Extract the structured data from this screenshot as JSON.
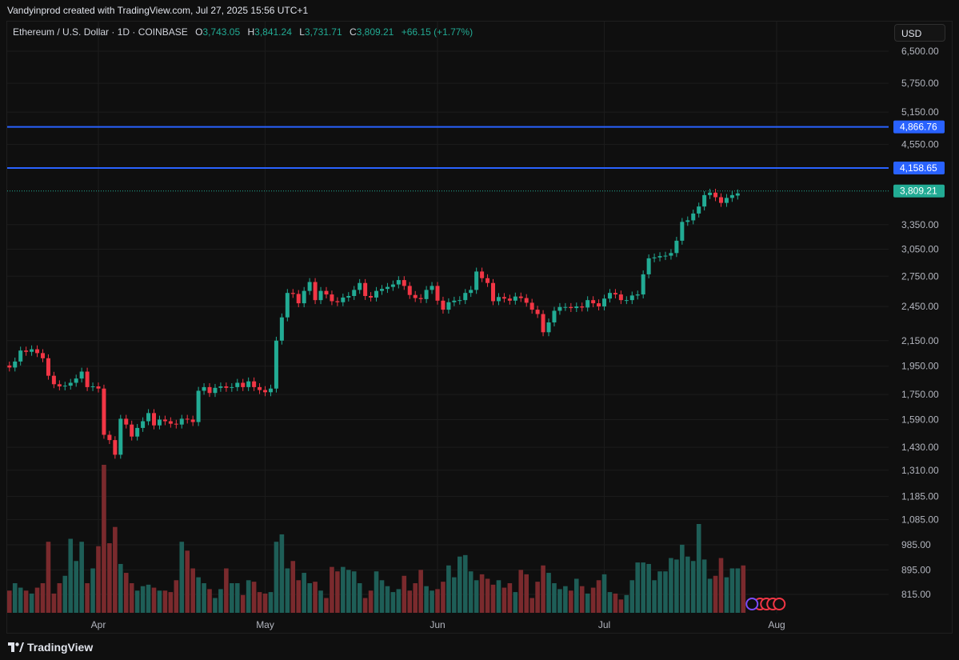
{
  "header": {
    "attribution": "Vandyinprod created with TradingView.com, Jul 27, 2025 15:56 UTC+1"
  },
  "legend": {
    "symbol": "Ethereum / U.S. Dollar · 1D · COINBASE",
    "o_label": "O",
    "o_value": "3,743.05",
    "h_label": "H",
    "h_value": "3,841.24",
    "l_label": "L",
    "l_value": "3,731.71",
    "c_label": "C",
    "c_value": "3,809.21",
    "change": "+66.15 (+1.77%)"
  },
  "currency_button": "USD",
  "footer": {
    "brand": "TradingView"
  },
  "colors": {
    "up": "#22ab94",
    "down": "#f23645",
    "level_line": "#2962ff",
    "background": "#0f0f0f"
  },
  "chart_data": {
    "type": "candlestick",
    "price_scale": "log",
    "y_ticks": [
      6500,
      5750,
      5150,
      4550,
      3350,
      3050,
      2750,
      2450,
      2150,
      1950,
      1750,
      1590,
      1430,
      1310,
      1185,
      1085,
      985,
      895,
      815
    ],
    "y_tick_labels": [
      "6,500.00",
      "5,750.00",
      "5,150.00",
      "4,550.00",
      "3,350.00",
      "3,050.00",
      "2,750.00",
      "2,450.00",
      "2,150.00",
      "1,950.00",
      "1,750.00",
      "1,590.00",
      "1,430.00",
      "1,310.00",
      "1,185.00",
      "1,085.00",
      "985.00",
      "895.00",
      "815.00"
    ],
    "x_labels": [
      "Apr",
      "May",
      "Jun",
      "Jul",
      "Aug"
    ],
    "x_label_dates": [
      "2025-04-01",
      "2025-05-01",
      "2025-06-01",
      "2025-07-01",
      "2025-08-01"
    ],
    "horizontal_levels": [
      {
        "price": 4866.76,
        "label": "4,866.76"
      },
      {
        "price": 4158.65,
        "label": "4,158.65"
      }
    ],
    "last_price": {
      "price": 3809.21,
      "label": "3,809.21"
    },
    "start_date": "2025-03-09",
    "ohlc_close": [
      1885,
      1870,
      1900,
      2040,
      1930,
      1920,
      1955,
      1940,
      1985,
      2070,
      2060,
      2080,
      2050,
      2010,
      1880,
      1820,
      1805,
      1810,
      1830,
      1860,
      1910,
      1800,
      1805,
      1790,
      1500,
      1470,
      1390,
      1595,
      1560,
      1490,
      1540,
      1580,
      1630,
      1555,
      1590,
      1580,
      1565,
      1560,
      1595,
      1590,
      1575,
      1775,
      1800,
      1760,
      1795,
      1805,
      1795,
      1800,
      1830,
      1800,
      1840,
      1800,
      1780,
      1765,
      1790,
      2150,
      2350,
      2580,
      2570,
      2480,
      2600,
      2690,
      2510,
      2600,
      2565,
      2500,
      2490,
      2535,
      2550,
      2610,
      2680,
      2550,
      2535,
      2600,
      2620,
      2640,
      2665,
      2710,
      2650,
      2560,
      2530,
      2520,
      2610,
      2650,
      2505,
      2420,
      2490,
      2505,
      2510,
      2580,
      2610,
      2800,
      2730,
      2680,
      2500,
      2540,
      2525,
      2505,
      2545,
      2530,
      2485,
      2420,
      2380,
      2220,
      2305,
      2410,
      2445,
      2445,
      2435,
      2450,
      2440,
      2510,
      2480,
      2450,
      2525,
      2580,
      2565,
      2510,
      2510,
      2555,
      2565,
      2770,
      2945,
      2955,
      2970,
      2975,
      3005,
      3150,
      3385,
      3405,
      3495,
      3590,
      3750,
      3785,
      3720,
      3640,
      3710,
      3750,
      3775,
      3809.21
    ],
    "ohlc_open": [
      1930,
      1885,
      1870,
      1900,
      2040,
      1930,
      1920,
      1955,
      1940,
      1985,
      2070,
      2060,
      2080,
      2050,
      2010,
      1880,
      1820,
      1805,
      1810,
      1830,
      1860,
      1910,
      1800,
      1805,
      1790,
      1500,
      1470,
      1390,
      1595,
      1560,
      1490,
      1540,
      1580,
      1630,
      1555,
      1590,
      1580,
      1565,
      1560,
      1595,
      1590,
      1575,
      1775,
      1800,
      1760,
      1795,
      1805,
      1795,
      1800,
      1830,
      1800,
      1840,
      1800,
      1780,
      1765,
      1790,
      2150,
      2350,
      2580,
      2570,
      2480,
      2600,
      2690,
      2510,
      2600,
      2565,
      2500,
      2490,
      2535,
      2550,
      2610,
      2680,
      2550,
      2535,
      2600,
      2620,
      2640,
      2665,
      2710,
      2650,
      2560,
      2530,
      2520,
      2610,
      2650,
      2505,
      2420,
      2490,
      2505,
      2510,
      2580,
      2610,
      2800,
      2730,
      2680,
      2500,
      2540,
      2525,
      2505,
      2545,
      2530,
      2485,
      2420,
      2380,
      2220,
      2305,
      2410,
      2445,
      2445,
      2435,
      2450,
      2440,
      2510,
      2480,
      2450,
      2525,
      2580,
      2565,
      2510,
      2510,
      2555,
      2565,
      2770,
      2945,
      2955,
      2970,
      2975,
      3005,
      3150,
      3385,
      3405,
      3495,
      3590,
      3750,
      3785,
      3720,
      3640,
      3710,
      3743.05
    ],
    "volume_relative": [
      0.15,
      0.15,
      0.3,
      0.18,
      0.14,
      0.12,
      0.1,
      0.15,
      0.2,
      0.17,
      0.15,
      0.13,
      0.17,
      0.2,
      0.48,
      0.13,
      0.2,
      0.25,
      0.5,
      0.35,
      0.48,
      0.2,
      0.3,
      0.45,
      1.0,
      0.47,
      0.58,
      0.33,
      0.27,
      0.2,
      0.15,
      0.18,
      0.19,
      0.17,
      0.15,
      0.15,
      0.14,
      0.22,
      0.48,
      0.42,
      0.3,
      0.24,
      0.2,
      0.16,
      0.1,
      0.16,
      0.3,
      0.2,
      0.2,
      0.12,
      0.22,
      0.21,
      0.14,
      0.13,
      0.14,
      0.48,
      0.53,
      0.3,
      0.35,
      0.22,
      0.27,
      0.2,
      0.21,
      0.15,
      0.1,
      0.31,
      0.28,
      0.31,
      0.29,
      0.28,
      0.2,
      0.1,
      0.15,
      0.28,
      0.22,
      0.18,
      0.14,
      0.16,
      0.25,
      0.15,
      0.2,
      0.29,
      0.18,
      0.15,
      0.16,
      0.21,
      0.32,
      0.24,
      0.38,
      0.39,
      0.28,
      0.22,
      0.26,
      0.23,
      0.19,
      0.22,
      0.17,
      0.2,
      0.14,
      0.29,
      0.26,
      0.1,
      0.21,
      0.32,
      0.27,
      0.2,
      0.16,
      0.18,
      0.15,
      0.23,
      0.18,
      0.13,
      0.17,
      0.22,
      0.26,
      0.14,
      0.13,
      0.09,
      0.12,
      0.22,
      0.34,
      0.34,
      0.33,
      0.22,
      0.28,
      0.28,
      0.37,
      0.36,
      0.46,
      0.38,
      0.35,
      0.6,
      0.36,
      0.23,
      0.25,
      0.37,
      0.24,
      0.3,
      0.3,
      0.32
    ]
  }
}
